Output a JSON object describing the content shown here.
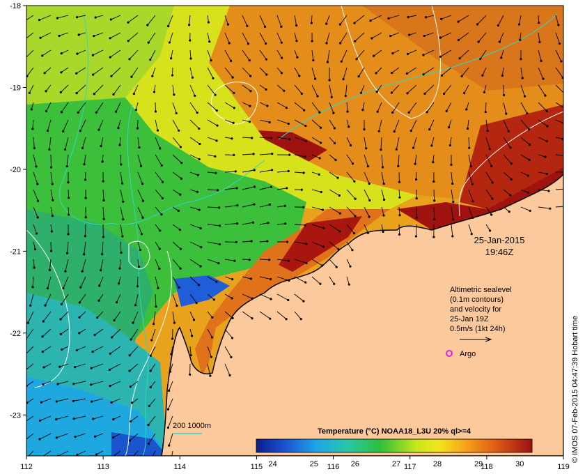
{
  "map": {
    "lon_ticks": [
      "112",
      "113",
      "114",
      "115",
      "116",
      "117",
      "118",
      "119"
    ],
    "lat_ticks": [
      "-18",
      "-19",
      "-20",
      "-21",
      "-22",
      "-23"
    ],
    "lon_range": [
      112,
      119
    ],
    "lat_range": [
      -18,
      -23.5
    ],
    "date_label": "25-Jan-2015",
    "time_label": "19:46Z",
    "legend": {
      "line1": "Altimetric sealevel",
      "line2": "(0.1m contours)",
      "line3": "and velocity for",
      "line4": "25-Jan 19Z",
      "line5": "0.5m/s (1kt 24h)"
    },
    "argo_label": "Argo",
    "bathy_label": "200  1000m",
    "credit": "© IMOS 07-Feb-2015 04:47:39 Hobart time",
    "colorbar": {
      "title": "Temperature (°C) NOAA18_L3U 20% ql>=4",
      "ticks": [
        "24",
        "25",
        "26",
        "27",
        "28",
        "29",
        "30"
      ],
      "range": [
        23.6,
        30.3
      ]
    },
    "colors": {
      "land": "#fcc99c",
      "cold": "#0a1f8f",
      "warm": "#a0120e",
      "contour": "#ffffff",
      "bathy": "#2fd6c6",
      "argo": "#e020e0"
    }
  }
}
